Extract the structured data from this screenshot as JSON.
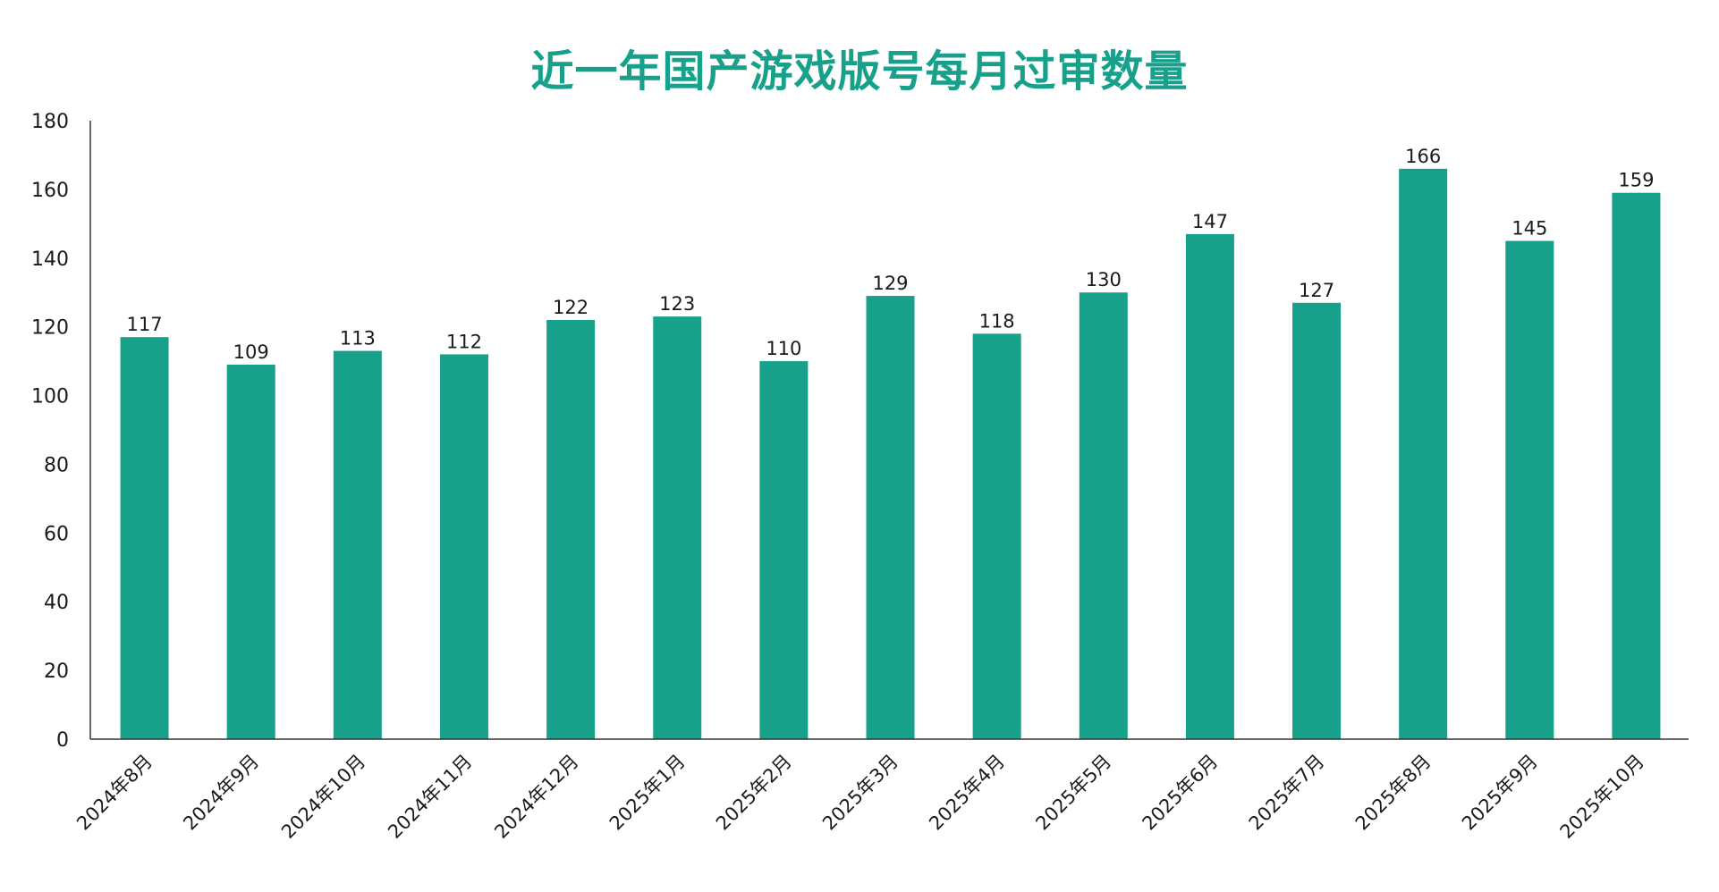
{
  "chart_data": {
    "type": "bar",
    "title": "近一年国产游戏版号每月过审数量",
    "xlabel": "",
    "ylabel": "",
    "categories": [
      "2024年8月",
      "2024年9月",
      "2024年10月",
      "2024年11月",
      "2024年12月",
      "2025年1月",
      "2025年2月",
      "2025年3月",
      "2025年4月",
      "2025年5月",
      "2025年6月",
      "2025年7月",
      "2025年8月",
      "2025年9月",
      "2025年10月"
    ],
    "values": [
      117,
      109,
      113,
      112,
      122,
      123,
      110,
      129,
      118,
      130,
      147,
      127,
      166,
      145,
      159
    ],
    "ylim": [
      0,
      180
    ],
    "yticks": [
      0,
      20,
      40,
      60,
      80,
      100,
      120,
      140,
      160,
      180
    ],
    "grid": false,
    "legend": "none",
    "data_labels": true
  },
  "colors": {
    "bar": "#17a08a",
    "title": "#17a08a",
    "axis": "#333333"
  }
}
